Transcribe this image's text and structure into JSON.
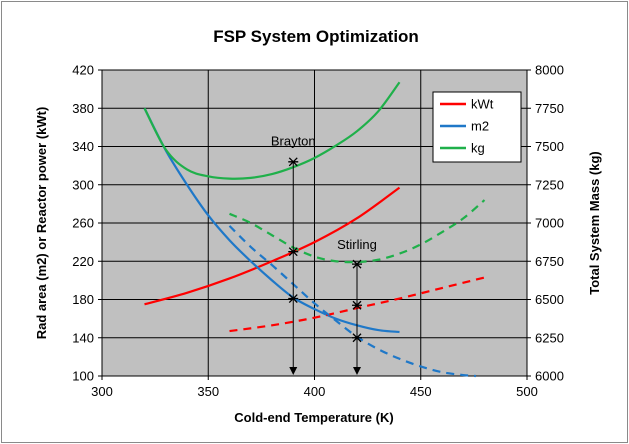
{
  "chart_data": {
    "type": "line",
    "title": "FSP System Optimization",
    "xlabel": "Cold-end Temperature (K)",
    "ylabel": "Rad area (m2) or Reactor power (kWt)",
    "y2label": "Total System Mass (kg)",
    "xlim": [
      300,
      500
    ],
    "ylim": [
      100,
      420
    ],
    "y2lim": [
      6000,
      8000
    ],
    "x_ticks": [
      "300",
      "350",
      "400",
      "450",
      "500"
    ],
    "y_ticks": [
      "100",
      "140",
      "180",
      "220",
      "260",
      "300",
      "340",
      "380",
      "420"
    ],
    "y2_ticks": [
      "6000",
      "6250",
      "6500",
      "6750",
      "7000",
      "7250",
      "7500",
      "7750",
      "8000"
    ],
    "grid": true,
    "legend_position": "top-right",
    "colors": {
      "kWt": "#ff0000",
      "m2": "#1f78c8",
      "kg": "#1fb04a",
      "plot_bg": "#c0c0c0"
    },
    "series": [
      {
        "name": "kWt",
        "axis": "left",
        "style": "solid",
        "x": [
          320,
          340,
          360,
          380,
          400,
          420,
          440
        ],
        "y": [
          175,
          187,
          202,
          220,
          240,
          265,
          297
        ]
      },
      {
        "name": "m2",
        "axis": "left",
        "style": "solid",
        "x": [
          320,
          330,
          340,
          350,
          360,
          370,
          380,
          390,
          400,
          410,
          420,
          430,
          440
        ],
        "y": [
          380,
          336,
          300,
          268,
          242,
          220,
          200,
          182,
          170,
          160,
          153,
          148,
          146
        ]
      },
      {
        "name": "kg",
        "axis": "right",
        "style": "solid",
        "x": [
          320,
          330,
          340,
          350,
          360,
          370,
          380,
          390,
          400,
          410,
          420,
          430,
          440
        ],
        "y": [
          7750,
          7480,
          7350,
          7305,
          7290,
          7295,
          7320,
          7365,
          7425,
          7505,
          7600,
          7730,
          7920
        ]
      },
      {
        "name": "kWt",
        "axis": "left",
        "style": "dashed",
        "x": [
          360,
          380,
          400,
          420,
          440,
          460,
          480
        ],
        "y": [
          147,
          153,
          161,
          171,
          181,
          192,
          203
        ]
      },
      {
        "name": "m2",
        "axis": "left",
        "style": "dashed",
        "x": [
          360,
          370,
          380,
          390,
          400,
          410,
          420,
          430,
          440,
          450,
          460,
          470,
          476
        ],
        "y": [
          257,
          235,
          216,
          196,
          176,
          158,
          141,
          128,
          118,
          110,
          104,
          101,
          100
        ]
      },
      {
        "name": "kg",
        "axis": "right",
        "style": "dashed",
        "x": [
          360,
          370,
          380,
          390,
          400,
          410,
          420,
          430,
          440,
          450,
          460,
          470,
          480
        ],
        "y": [
          7060,
          7000,
          6920,
          6840,
          6780,
          6750,
          6745,
          6760,
          6800,
          6860,
          6940,
          7030,
          7150
        ]
      }
    ],
    "annotations": [
      {
        "label": "Brayton",
        "x": 390,
        "markers_left": [
          324,
          230,
          181
        ],
        "arrow_to": 100,
        "label_at_y": 345
      },
      {
        "label": "Stirling",
        "x": 420,
        "markers_left": [
          217,
          174,
          140
        ],
        "arrow_to": 100,
        "label_at_y": 237
      }
    ]
  }
}
